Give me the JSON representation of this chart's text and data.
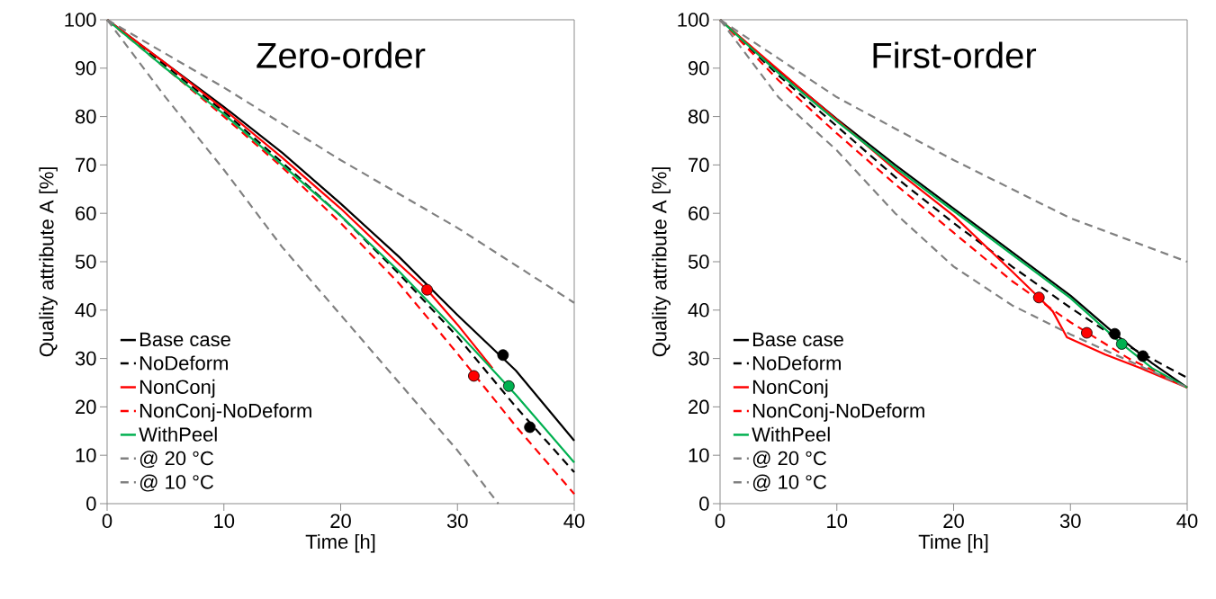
{
  "chart_data": [
    {
      "type": "line",
      "title": "Zero-order",
      "xlabel": "Time [h]",
      "ylabel": "Quality attribute A [%]",
      "xlim": [
        0,
        40
      ],
      "ylim": [
        0,
        100
      ],
      "xticks": [
        0,
        10,
        20,
        30,
        40
      ],
      "yticks": [
        0,
        10,
        20,
        30,
        40,
        50,
        60,
        70,
        80,
        90,
        100
      ],
      "legend": "bottom left",
      "series": [
        {
          "name": "Base case",
          "color": "#000000",
          "line_style": "solid",
          "marker": "none",
          "x": [
            0,
            5,
            10,
            15,
            20,
            25,
            30,
            35,
            40
          ],
          "values": [
            100,
            91,
            82,
            72.5,
            62,
            51,
            39,
            27.5,
            13
          ]
        },
        {
          "name": "NoDeform",
          "color": "#000000",
          "line_style": "dashed",
          "marker": "none",
          "x": [
            0,
            5,
            10,
            15,
            20,
            25,
            30,
            35,
            40
          ],
          "values": [
            100,
            90.5,
            81,
            70.5,
            59.5,
            47.5,
            34.5,
            20,
            6.5
          ]
        },
        {
          "name": "NonConj",
          "color": "#ff0000",
          "line_style": "solid",
          "marker": "none",
          "x": [
            0,
            5,
            10,
            15,
            20,
            25,
            27.4,
            30,
            33
          ],
          "values": [
            100,
            91,
            81.5,
            71.5,
            61,
            49.5,
            44.2,
            37,
            28
          ]
        },
        {
          "name": "NonConj-NoDeform",
          "color": "#ff0000",
          "line_style": "dashed",
          "marker": "none",
          "x": [
            0,
            5,
            10,
            15,
            20,
            25,
            30,
            35,
            40
          ],
          "values": [
            100,
            90,
            80,
            69.5,
            58,
            45.5,
            31,
            16,
            2
          ]
        },
        {
          "name": "WithPeel",
          "color": "#00b050",
          "line_style": "solid",
          "marker": "none",
          "x": [
            0,
            5,
            10,
            15,
            20,
            25,
            30,
            35,
            40
          ],
          "values": [
            100,
            90,
            80.5,
            70,
            59.5,
            48,
            35.5,
            22.5,
            8.5
          ]
        },
        {
          "name": "@ 20 °C",
          "color": "#808080",
          "line_style": "dashed",
          "marker": "none",
          "x": [
            0,
            5,
            10,
            15,
            20,
            25,
            30,
            33.5
          ],
          "values": [
            100,
            84,
            69,
            53,
            39,
            25,
            11,
            0
          ]
        },
        {
          "name": "@ 10 °C",
          "color": "#808080",
          "line_style": "dashed",
          "marker": "none",
          "x": [
            0,
            10,
            20,
            30,
            40
          ],
          "values": [
            100,
            86,
            71,
            57,
            41.5
          ]
        },
        {
          "type": "scatter",
          "marker": "circle",
          "colors": [
            "#ff0000",
            "#ff0000",
            "#000000",
            "#000000",
            "#00b050"
          ],
          "x": [
            27.4,
            31.4,
            33.9,
            36.2,
            34.4
          ],
          "values": [
            44.2,
            26.4,
            30.7,
            15.8,
            24.3
          ]
        }
      ]
    },
    {
      "type": "line",
      "title": "First-order",
      "xlabel": "Time [h]",
      "ylabel": "Quality attribute A [%]",
      "xlim": [
        0,
        40
      ],
      "ylim": [
        0,
        100
      ],
      "xticks": [
        0,
        10,
        20,
        30,
        40
      ],
      "yticks": [
        0,
        10,
        20,
        30,
        40,
        50,
        60,
        70,
        80,
        90,
        100
      ],
      "legend": "bottom left",
      "series": [
        {
          "name": "Base case",
          "color": "#000000",
          "line_style": "solid",
          "marker": "none",
          "x": [
            0,
            5,
            10,
            15,
            20,
            25,
            30,
            33.8,
            37,
            40
          ],
          "values": [
            100,
            89.5,
            79.5,
            70,
            61,
            52,
            43,
            35.1,
            29,
            24
          ]
        },
        {
          "name": "NoDeform",
          "color": "#000000",
          "line_style": "dashed",
          "marker": "none",
          "x": [
            0,
            5,
            10,
            15,
            20,
            25,
            30,
            35,
            40
          ],
          "values": [
            100,
            88.5,
            78,
            67.5,
            58,
            49,
            40.5,
            32.5,
            26
          ]
        },
        {
          "name": "NonConj",
          "color": "#ff0000",
          "line_style": "solid",
          "marker": "none",
          "x": [
            0,
            5,
            10,
            15,
            20,
            25,
            27.3,
            28.5,
            29.7,
            33,
            36,
            40
          ],
          "values": [
            100,
            null,
            null,
            69,
            59.5,
            48,
            42.6,
            39.7,
            34.4,
            30.8,
            28,
            24
          ]
        },
        {
          "name": "NonConj-NoDeform",
          "color": "#ff0000",
          "line_style": "dashed",
          "marker": "none",
          "x": [
            0,
            5,
            10,
            15,
            20,
            25,
            30,
            35,
            40
          ],
          "values": [
            100,
            87.5,
            76.5,
            66,
            56,
            46,
            37.5,
            30,
            24
          ]
        },
        {
          "name": "WithPeel",
          "color": "#00b050",
          "line_style": "solid",
          "marker": "none",
          "x": [
            0,
            5,
            10,
            15,
            20,
            25,
            30,
            34.4,
            37,
            40
          ],
          "values": [
            100,
            89,
            79,
            69.5,
            60.5,
            51.5,
            42.5,
            33,
            28,
            24
          ]
        },
        {
          "name": "@ 20 °C",
          "color": "#808080",
          "line_style": "dashed",
          "marker": "none",
          "x": [
            0,
            5,
            10,
            15,
            20,
            25,
            30,
            35,
            40
          ],
          "values": [
            100,
            84,
            73,
            60,
            49,
            41,
            35,
            29.5,
            24
          ]
        },
        {
          "name": "@ 10 °C",
          "color": "#808080",
          "line_style": "dashed",
          "marker": "none",
          "x": [
            0,
            10,
            20,
            30,
            40
          ],
          "values": [
            100,
            84,
            71,
            59,
            50
          ]
        },
        {
          "type": "scatter",
          "marker": "circle",
          "colors": [
            "#ff0000",
            "#ff0000",
            "#000000",
            "#000000",
            "#00b050"
          ],
          "x": [
            27.3,
            31.4,
            33.8,
            36.2,
            34.4
          ],
          "values": [
            42.6,
            35.3,
            35.1,
            30.5,
            33
          ]
        }
      ]
    }
  ]
}
